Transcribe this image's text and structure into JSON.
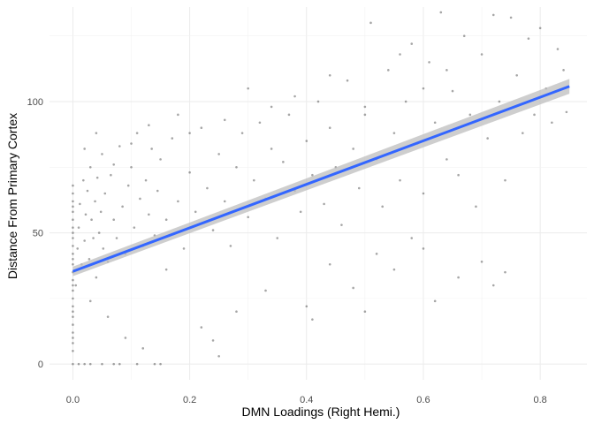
{
  "chart_data": {
    "type": "scatter",
    "title": "",
    "xlabel": "DMN Loadings (Right Hemi.)",
    "ylabel": "Distance From Primary Cortex",
    "xlim": [
      -0.04,
      0.88
    ],
    "ylim": [
      -6,
      136
    ],
    "x_ticks": [
      0.0,
      0.2,
      0.4,
      0.6,
      0.8
    ],
    "x_tick_labels": [
      "0.0",
      "0.2",
      "0.4",
      "0.6",
      "0.8"
    ],
    "y_ticks": [
      0,
      50,
      100
    ],
    "y_tick_labels": [
      "0",
      "50",
      "100"
    ],
    "grid": true,
    "legend": "none",
    "series": [
      {
        "kind": "points",
        "description_points": "approx. points; dense near x=0, spread 0–135",
        "points": [
          [
            0.0,
            5
          ],
          [
            0.0,
            8
          ],
          [
            0.0,
            10
          ],
          [
            0.0,
            12
          ],
          [
            0.0,
            15
          ],
          [
            0.0,
            18
          ],
          [
            0.0,
            20
          ],
          [
            0.0,
            22
          ],
          [
            0.0,
            25
          ],
          [
            0.0,
            28
          ],
          [
            0.0,
            30
          ],
          [
            0.0,
            32
          ],
          [
            0.0,
            35
          ],
          [
            0.0,
            38
          ],
          [
            0.0,
            40
          ],
          [
            0.0,
            42
          ],
          [
            0.0,
            45
          ],
          [
            0.0,
            48
          ],
          [
            0.0,
            50
          ],
          [
            0.0,
            52
          ],
          [
            0.0,
            55
          ],
          [
            0.0,
            58
          ],
          [
            0.0,
            60
          ],
          [
            0.0,
            62
          ],
          [
            0.0,
            65
          ],
          [
            0.0,
            68
          ],
          [
            0.0,
            0
          ],
          [
            0.01,
            0
          ],
          [
            0.02,
            0
          ],
          [
            0.03,
            0
          ],
          [
            0.05,
            0
          ],
          [
            0.07,
            0
          ],
          [
            0.08,
            0
          ],
          [
            0.11,
            0
          ],
          [
            0.14,
            0
          ],
          [
            0.15,
            0
          ],
          [
            0.005,
            30
          ],
          [
            0.008,
            44
          ],
          [
            0.01,
            52
          ],
          [
            0.012,
            61
          ],
          [
            0.015,
            38
          ],
          [
            0.018,
            70
          ],
          [
            0.02,
            47
          ],
          [
            0.022,
            57
          ],
          [
            0.025,
            66
          ],
          [
            0.028,
            40
          ],
          [
            0.03,
            75
          ],
          [
            0.032,
            55
          ],
          [
            0.035,
            48
          ],
          [
            0.038,
            62
          ],
          [
            0.04,
            33
          ],
          [
            0.042,
            71
          ],
          [
            0.045,
            50
          ],
          [
            0.048,
            58
          ],
          [
            0.05,
            80
          ],
          [
            0.052,
            44
          ],
          [
            0.055,
            65
          ],
          [
            0.06,
            39
          ],
          [
            0.065,
            72
          ],
          [
            0.07,
            55
          ],
          [
            0.075,
            48
          ],
          [
            0.08,
            83
          ],
          [
            0.085,
            60
          ],
          [
            0.09,
            42
          ],
          [
            0.095,
            68
          ],
          [
            0.1,
            75
          ],
          [
            0.105,
            52
          ],
          [
            0.11,
            88
          ],
          [
            0.115,
            63
          ],
          [
            0.12,
            45
          ],
          [
            0.125,
            70
          ],
          [
            0.13,
            57
          ],
          [
            0.135,
            82
          ],
          [
            0.14,
            49
          ],
          [
            0.145,
            66
          ],
          [
            0.15,
            78
          ],
          [
            0.16,
            55
          ],
          [
            0.17,
            86
          ],
          [
            0.18,
            62
          ],
          [
            0.19,
            44
          ],
          [
            0.2,
            73
          ],
          [
            0.21,
            58
          ],
          [
            0.22,
            90
          ],
          [
            0.23,
            67
          ],
          [
            0.24,
            51
          ],
          [
            0.25,
            80
          ],
          [
            0.26,
            62
          ],
          [
            0.27,
            45
          ],
          [
            0.28,
            75
          ],
          [
            0.29,
            88
          ],
          [
            0.3,
            56
          ],
          [
            0.31,
            70
          ],
          [
            0.32,
            92
          ],
          [
            0.33,
            63
          ],
          [
            0.34,
            82
          ],
          [
            0.35,
            48
          ],
          [
            0.36,
            77
          ],
          [
            0.37,
            95
          ],
          [
            0.38,
            66
          ],
          [
            0.39,
            58
          ],
          [
            0.4,
            85
          ],
          [
            0.41,
            72
          ],
          [
            0.42,
            100
          ],
          [
            0.43,
            61
          ],
          [
            0.44,
            90
          ],
          [
            0.45,
            75
          ],
          [
            0.46,
            53
          ],
          [
            0.47,
            108
          ],
          [
            0.48,
            82
          ],
          [
            0.49,
            67
          ],
          [
            0.5,
            95
          ],
          [
            0.51,
            130
          ],
          [
            0.52,
            78
          ],
          [
            0.53,
            60
          ],
          [
            0.54,
            112
          ],
          [
            0.55,
            88
          ],
          [
            0.56,
            70
          ],
          [
            0.57,
            100
          ],
          [
            0.58,
            122
          ],
          [
            0.59,
            84
          ],
          [
            0.6,
            65
          ],
          [
            0.61,
            115
          ],
          [
            0.62,
            92
          ],
          [
            0.63,
            134
          ],
          [
            0.64,
            78
          ],
          [
            0.65,
            104
          ],
          [
            0.66,
            72
          ],
          [
            0.67,
            125
          ],
          [
            0.68,
            95
          ],
          [
            0.69,
            60
          ],
          [
            0.7,
            118
          ],
          [
            0.71,
            86
          ],
          [
            0.72,
            133
          ],
          [
            0.73,
            100
          ],
          [
            0.74,
            70
          ],
          [
            0.75,
            132
          ],
          [
            0.76,
            110
          ],
          [
            0.77,
            88
          ],
          [
            0.78,
            124
          ],
          [
            0.79,
            95
          ],
          [
            0.8,
            128
          ],
          [
            0.81,
            105
          ],
          [
            0.82,
            92
          ],
          [
            0.83,
            120
          ],
          [
            0.84,
            112
          ],
          [
            0.845,
            96
          ],
          [
            0.03,
            24
          ],
          [
            0.06,
            18
          ],
          [
            0.09,
            10
          ],
          [
            0.12,
            6
          ],
          [
            0.16,
            36
          ],
          [
            0.22,
            14
          ],
          [
            0.25,
            3
          ],
          [
            0.24,
            9
          ],
          [
            0.28,
            20
          ],
          [
            0.33,
            28
          ],
          [
            0.4,
            22
          ],
          [
            0.41,
            17
          ],
          [
            0.44,
            38
          ],
          [
            0.48,
            29
          ],
          [
            0.5,
            20
          ],
          [
            0.52,
            42
          ],
          [
            0.55,
            36
          ],
          [
            0.58,
            48
          ],
          [
            0.6,
            44
          ],
          [
            0.62,
            24
          ],
          [
            0.66,
            33
          ],
          [
            0.7,
            39
          ],
          [
            0.72,
            30
          ],
          [
            0.74,
            35
          ],
          [
            0.02,
            82
          ],
          [
            0.04,
            88
          ],
          [
            0.07,
            76
          ],
          [
            0.1,
            84
          ],
          [
            0.13,
            91
          ],
          [
            0.18,
            95
          ],
          [
            0.2,
            88
          ],
          [
            0.26,
            93
          ],
          [
            0.3,
            105
          ],
          [
            0.34,
            98
          ],
          [
            0.38,
            102
          ],
          [
            0.44,
            110
          ],
          [
            0.5,
            98
          ],
          [
            0.56,
            118
          ],
          [
            0.6,
            105
          ],
          [
            0.64,
            112
          ]
        ]
      },
      {
        "kind": "regression",
        "color": "#3366ff",
        "ribbon_color": "#bdbdbd",
        "x": [
          0.0,
          0.85
        ],
        "y": [
          35.3,
          105.8
        ],
        "ci_low": [
          33.5,
          103.0
        ],
        "ci_high": [
          37.1,
          108.6
        ]
      }
    ]
  }
}
